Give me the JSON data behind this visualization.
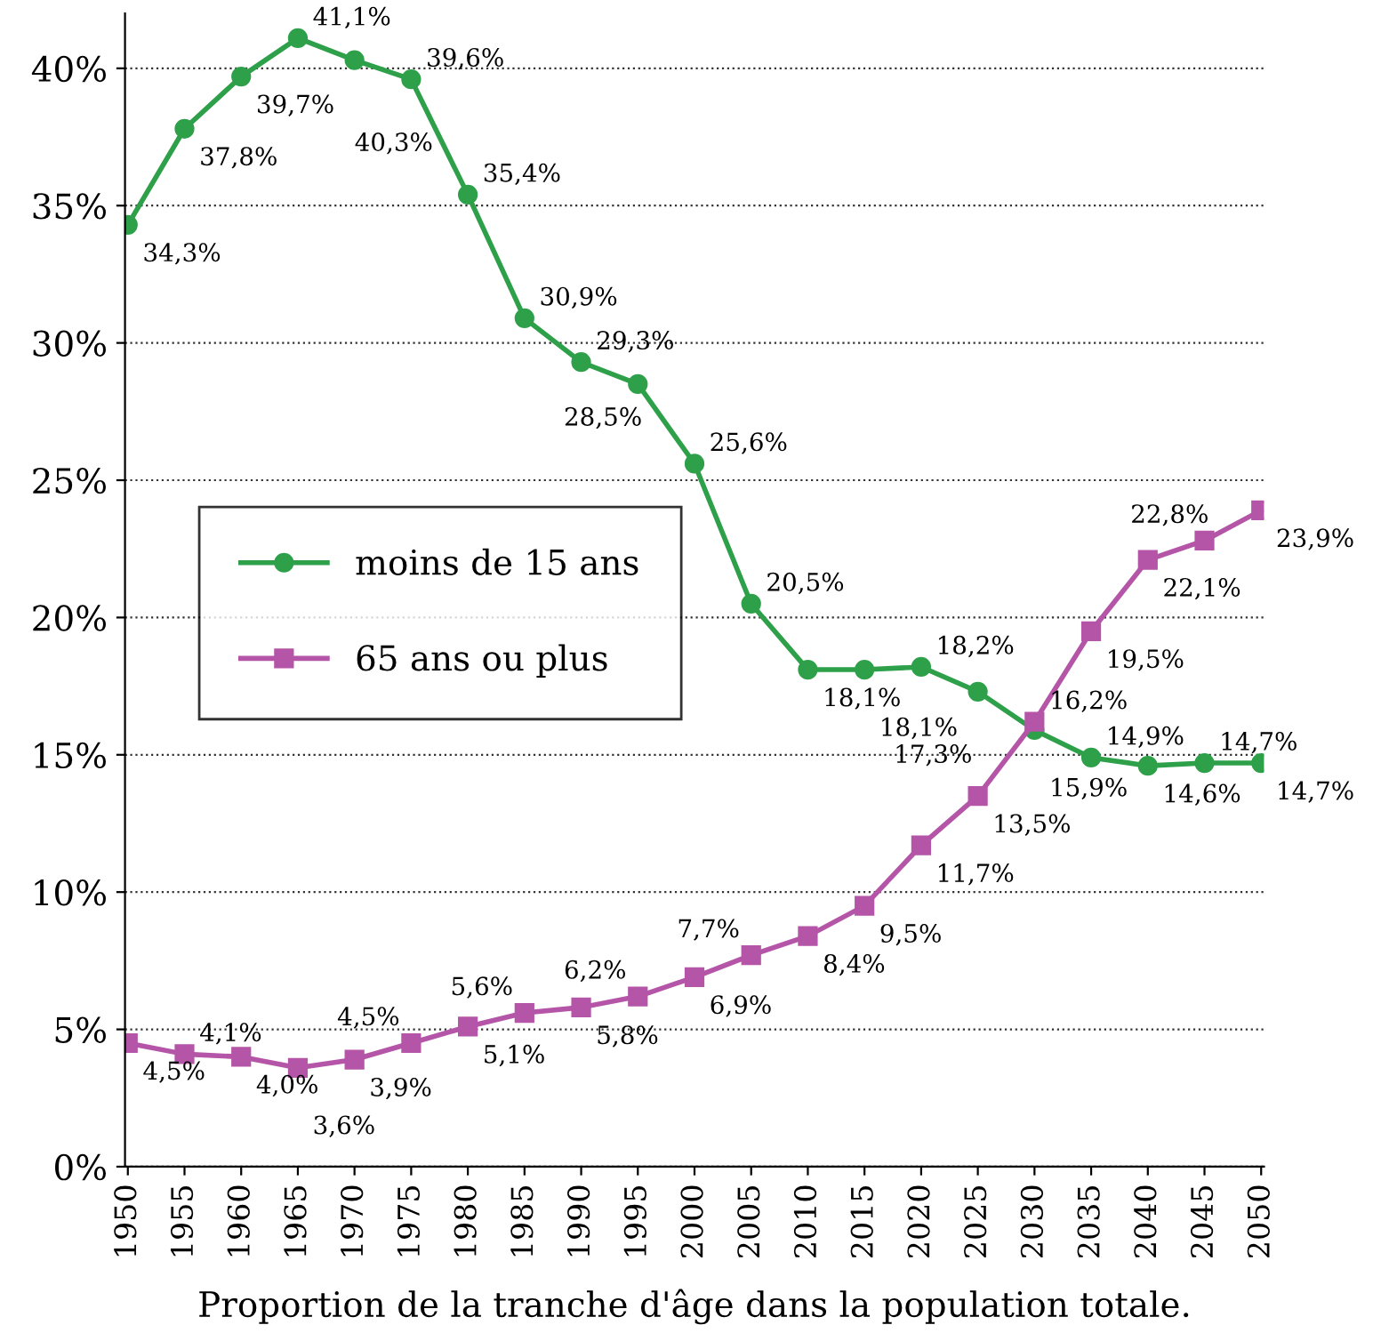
{
  "chart_data": {
    "type": "line",
    "xlabel": "Proportion de la tranche d'âge dans la population totale.",
    "categories": [
      "1950",
      "1955",
      "1960",
      "1965",
      "1970",
      "1975",
      "1980",
      "1985",
      "1990",
      "1995",
      "2000",
      "2005",
      "2010",
      "2015",
      "2020",
      "2025",
      "2030",
      "2035",
      "2040",
      "2045",
      "2050"
    ],
    "ylim": [
      0,
      42
    ],
    "yticks": [
      {
        "value": 0,
        "label": "0%"
      },
      {
        "value": 5,
        "label": "5%"
      },
      {
        "value": 10,
        "label": "10%"
      },
      {
        "value": 15,
        "label": "15%"
      },
      {
        "value": 20,
        "label": "20%"
      },
      {
        "value": 25,
        "label": "25%"
      },
      {
        "value": 30,
        "label": "30%"
      },
      {
        "value": 35,
        "label": "35%"
      },
      {
        "value": 40,
        "label": "40%"
      }
    ],
    "grid": "y",
    "legend": "left",
    "series": [
      {
        "name": "moins de 15 ans",
        "color": "#2ea04a",
        "marker": "circle",
        "values": [
          34.3,
          37.8,
          39.7,
          41.1,
          40.3,
          39.6,
          35.4,
          30.9,
          29.3,
          28.5,
          25.6,
          20.5,
          18.1,
          18.1,
          18.2,
          17.3,
          15.9,
          14.9,
          14.6,
          14.7,
          14.7
        ],
        "value_labels": [
          "34,3%",
          "37,8%",
          "39,7%",
          "41,1%",
          "40,3%",
          "39,6%",
          "35,4%",
          "30,9%",
          "29,3%",
          "28,5%",
          "25,6%",
          "20,5%",
          "18,1%",
          "18,1%",
          "18,2%",
          "17,3%",
          "15,9%",
          "14,9%",
          "14,6%",
          "14,7%",
          "14,7%"
        ]
      },
      {
        "name": "65 ans ou plus",
        "color": "#b455a8",
        "marker": "square",
        "values": [
          4.5,
          4.1,
          4.0,
          3.6,
          3.9,
          4.5,
          5.1,
          5.6,
          5.8,
          6.2,
          6.9,
          7.7,
          8.4,
          9.5,
          11.7,
          13.5,
          16.2,
          19.5,
          22.1,
          22.8,
          23.9
        ],
        "value_labels": [
          "4,5%",
          "4,1%",
          "4,0%",
          "3,6%",
          "3,9%",
          "4,5%",
          "5,1%",
          "5,6%",
          "5,8%",
          "6,2%",
          "6,9%",
          "7,7%",
          "8,4%",
          "9,5%",
          "11,7%",
          "13,5%",
          "16,2%",
          "19,5%",
          "22,1%",
          "22,8%",
          "23,9%"
        ]
      }
    ]
  }
}
